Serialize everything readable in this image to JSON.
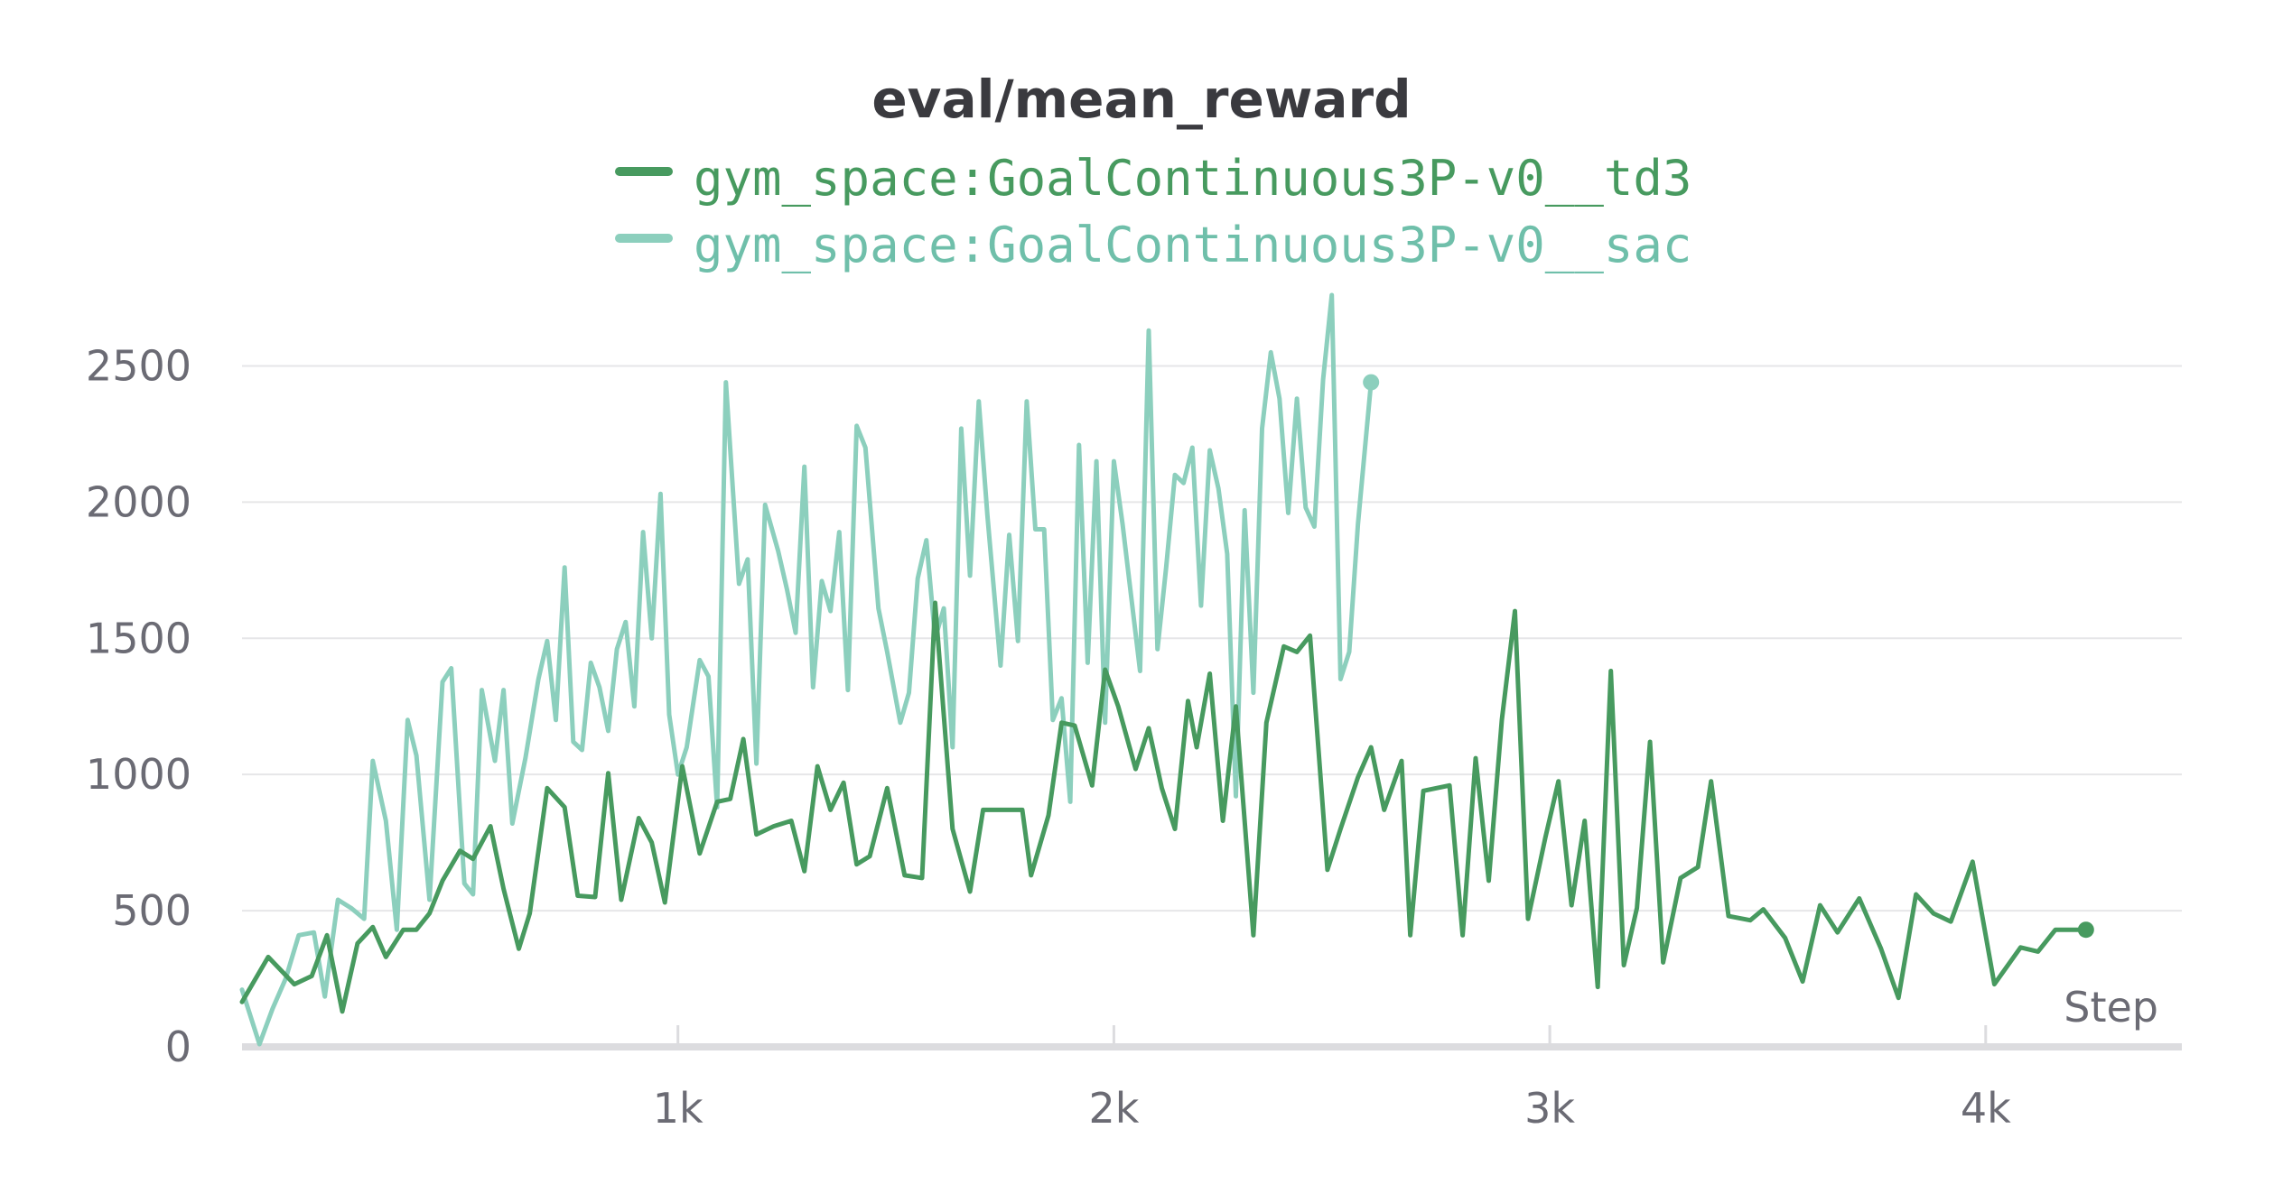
{
  "chart_data": {
    "type": "line",
    "title": "eval/mean_reward",
    "xlabel": "Step",
    "ylabel": "",
    "xlim": [
      0,
      4450
    ],
    "ylim": [
      0,
      2750
    ],
    "grid": true,
    "legend_position": "top",
    "x_ticks": [
      {
        "value": 1000,
        "label": "1k"
      },
      {
        "value": 2000,
        "label": "2k"
      },
      {
        "value": 3000,
        "label": "3k"
      },
      {
        "value": 4000,
        "label": "4k"
      }
    ],
    "y_ticks": [
      {
        "value": 0,
        "label": "0"
      },
      {
        "value": 500,
        "label": "500"
      },
      {
        "value": 1000,
        "label": "1000"
      },
      {
        "value": 1500,
        "label": "1500"
      },
      {
        "value": 2000,
        "label": "2000"
      },
      {
        "value": 2500,
        "label": "2500"
      }
    ],
    "series": [
      {
        "name": "gym_space:GoalContinuous3P-v0__td3",
        "color": "#479a5f",
        "end_marker": true,
        "points": [
          [
            0,
            165
          ],
          [
            60,
            330
          ],
          [
            120,
            230
          ],
          [
            160,
            260
          ],
          [
            195,
            410
          ],
          [
            230,
            130
          ],
          [
            265,
            380
          ],
          [
            300,
            440
          ],
          [
            330,
            330
          ],
          [
            370,
            430
          ],
          [
            400,
            430
          ],
          [
            430,
            490
          ],
          [
            460,
            610
          ],
          [
            500,
            720
          ],
          [
            530,
            690
          ],
          [
            570,
            810
          ],
          [
            600,
            580
          ],
          [
            635,
            360
          ],
          [
            660,
            490
          ],
          [
            700,
            950
          ],
          [
            740,
            880
          ],
          [
            770,
            555
          ],
          [
            810,
            550
          ],
          [
            840,
            1005
          ],
          [
            870,
            540
          ],
          [
            910,
            840
          ],
          [
            940,
            750
          ],
          [
            970,
            530
          ],
          [
            1010,
            1030
          ],
          [
            1050,
            710
          ],
          [
            1090,
            900
          ],
          [
            1120,
            910
          ],
          [
            1150,
            1130
          ],
          [
            1180,
            780
          ],
          [
            1220,
            810
          ],
          [
            1260,
            830
          ],
          [
            1290,
            645
          ],
          [
            1320,
            1030
          ],
          [
            1350,
            870
          ],
          [
            1380,
            970
          ],
          [
            1410,
            670
          ],
          [
            1440,
            700
          ],
          [
            1480,
            950
          ],
          [
            1520,
            630
          ],
          [
            1560,
            620
          ],
          [
            1590,
            1630
          ],
          [
            1630,
            800
          ],
          [
            1670,
            570
          ],
          [
            1700,
            870
          ],
          [
            1750,
            870
          ],
          [
            1790,
            870
          ],
          [
            1810,
            630
          ],
          [
            1850,
            850
          ],
          [
            1880,
            1190
          ],
          [
            1910,
            1180
          ],
          [
            1950,
            960
          ],
          [
            1980,
            1385
          ],
          [
            2010,
            1250
          ],
          [
            2050,
            1020
          ],
          [
            2080,
            1170
          ],
          [
            2110,
            950
          ],
          [
            2140,
            800
          ],
          [
            2170,
            1270
          ],
          [
            2190,
            1100
          ],
          [
            2220,
            1370
          ],
          [
            2250,
            830
          ],
          [
            2280,
            1250
          ],
          [
            2320,
            410
          ],
          [
            2350,
            1190
          ],
          [
            2390,
            1470
          ],
          [
            2420,
            1450
          ],
          [
            2450,
            1510
          ],
          [
            2490,
            650
          ],
          [
            2520,
            800
          ],
          [
            2560,
            990
          ],
          [
            2590,
            1100
          ],
          [
            2620,
            870
          ],
          [
            2660,
            1050
          ],
          [
            2680,
            410
          ],
          [
            2710,
            940
          ],
          [
            2740,
            950
          ],
          [
            2770,
            960
          ],
          [
            2800,
            410
          ],
          [
            2830,
            1060
          ],
          [
            2860,
            610
          ],
          [
            2890,
            1200
          ],
          [
            2920,
            1600
          ],
          [
            2950,
            470
          ],
          [
            2990,
            770
          ],
          [
            3020,
            975
          ],
          [
            3050,
            520
          ],
          [
            3080,
            830
          ],
          [
            3110,
            220
          ],
          [
            3140,
            1380
          ],
          [
            3170,
            300
          ],
          [
            3200,
            510
          ],
          [
            3230,
            1120
          ],
          [
            3260,
            310
          ],
          [
            3300,
            620
          ],
          [
            3340,
            660
          ],
          [
            3370,
            975
          ],
          [
            3410,
            480
          ],
          [
            3460,
            465
          ],
          [
            3490,
            505
          ],
          [
            3540,
            400
          ],
          [
            3580,
            240
          ],
          [
            3620,
            520
          ],
          [
            3660,
            420
          ],
          [
            3710,
            545
          ],
          [
            3760,
            360
          ],
          [
            3800,
            180
          ],
          [
            3840,
            560
          ],
          [
            3880,
            490
          ],
          [
            3920,
            460
          ],
          [
            3970,
            680
          ],
          [
            4020,
            230
          ],
          [
            4080,
            365
          ],
          [
            4120,
            350
          ],
          [
            4160,
            430
          ],
          [
            4200,
            430
          ],
          [
            4230,
            430
          ]
        ]
      },
      {
        "name": "gym_space:GoalContinuous3P-v0__sac",
        "color": "#8ccfbd",
        "end_marker": true,
        "points": [
          [
            0,
            210
          ],
          [
            40,
            10
          ],
          [
            70,
            140
          ],
          [
            100,
            250
          ],
          [
            130,
            410
          ],
          [
            165,
            420
          ],
          [
            190,
            185
          ],
          [
            220,
            540
          ],
          [
            250,
            510
          ],
          [
            280,
            470
          ],
          [
            300,
            1050
          ],
          [
            330,
            830
          ],
          [
            355,
            430
          ],
          [
            380,
            1200
          ],
          [
            400,
            1070
          ],
          [
            430,
            540
          ],
          [
            460,
            1340
          ],
          [
            480,
            1390
          ],
          [
            510,
            600
          ],
          [
            530,
            560
          ],
          [
            550,
            1310
          ],
          [
            580,
            1050
          ],
          [
            600,
            1310
          ],
          [
            620,
            820
          ],
          [
            650,
            1060
          ],
          [
            680,
            1350
          ],
          [
            700,
            1490
          ],
          [
            720,
            1200
          ],
          [
            740,
            1760
          ],
          [
            760,
            1120
          ],
          [
            780,
            1090
          ],
          [
            800,
            1410
          ],
          [
            820,
            1320
          ],
          [
            840,
            1160
          ],
          [
            860,
            1460
          ],
          [
            880,
            1560
          ],
          [
            900,
            1250
          ],
          [
            920,
            1890
          ],
          [
            940,
            1500
          ],
          [
            960,
            2030
          ],
          [
            980,
            1220
          ],
          [
            1000,
            1000
          ],
          [
            1020,
            1100
          ],
          [
            1050,
            1420
          ],
          [
            1070,
            1360
          ],
          [
            1090,
            880
          ],
          [
            1110,
            2440
          ],
          [
            1140,
            1700
          ],
          [
            1160,
            1790
          ],
          [
            1180,
            1040
          ],
          [
            1200,
            1990
          ],
          [
            1230,
            1820
          ],
          [
            1250,
            1680
          ],
          [
            1270,
            1520
          ],
          [
            1290,
            2130
          ],
          [
            1310,
            1320
          ],
          [
            1330,
            1710
          ],
          [
            1350,
            1600
          ],
          [
            1370,
            1890
          ],
          [
            1390,
            1310
          ],
          [
            1410,
            2280
          ],
          [
            1430,
            2200
          ],
          [
            1460,
            1610
          ],
          [
            1480,
            1450
          ],
          [
            1510,
            1190
          ],
          [
            1530,
            1300
          ],
          [
            1550,
            1720
          ],
          [
            1570,
            1860
          ],
          [
            1590,
            1500
          ],
          [
            1610,
            1610
          ],
          [
            1630,
            1100
          ],
          [
            1650,
            2270
          ],
          [
            1670,
            1730
          ],
          [
            1690,
            2370
          ],
          [
            1710,
            1950
          ],
          [
            1740,
            1400
          ],
          [
            1760,
            1880
          ],
          [
            1780,
            1490
          ],
          [
            1800,
            2370
          ],
          [
            1820,
            1900
          ],
          [
            1840,
            1900
          ],
          [
            1860,
            1200
          ],
          [
            1880,
            1280
          ],
          [
            1900,
            900
          ],
          [
            1920,
            2210
          ],
          [
            1940,
            1410
          ],
          [
            1960,
            2150
          ],
          [
            1980,
            1190
          ],
          [
            2000,
            2150
          ],
          [
            2020,
            1920
          ],
          [
            2040,
            1650
          ],
          [
            2060,
            1380
          ],
          [
            2080,
            2630
          ],
          [
            2100,
            1460
          ],
          [
            2120,
            1760
          ],
          [
            2140,
            2100
          ],
          [
            2160,
            2070
          ],
          [
            2180,
            2200
          ],
          [
            2200,
            1620
          ],
          [
            2220,
            2190
          ],
          [
            2240,
            2050
          ],
          [
            2260,
            1810
          ],
          [
            2280,
            920
          ],
          [
            2300,
            1970
          ],
          [
            2320,
            1300
          ],
          [
            2340,
            2270
          ],
          [
            2360,
            2550
          ],
          [
            2380,
            2380
          ],
          [
            2400,
            1960
          ],
          [
            2420,
            2380
          ],
          [
            2440,
            1980
          ],
          [
            2460,
            1910
          ],
          [
            2480,
            2450
          ],
          [
            2500,
            2760
          ],
          [
            2520,
            1350
          ],
          [
            2540,
            1450
          ],
          [
            2560,
            1920
          ],
          [
            2590,
            2440
          ]
        ]
      }
    ]
  }
}
